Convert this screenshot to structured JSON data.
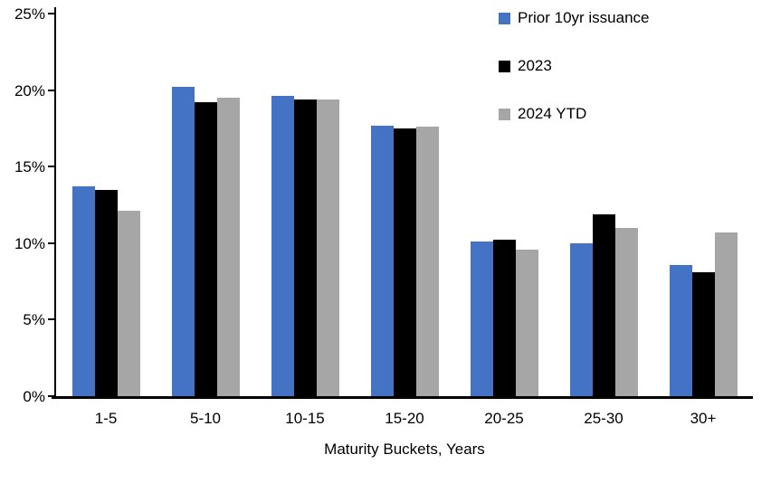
{
  "chart_data": {
    "type": "bar",
    "title": "",
    "xlabel": "Maturity Buckets, Years",
    "ylabel": "",
    "ylim": [
      0,
      25
    ],
    "ytick_step": 5,
    "ytick_labels": [
      "0%",
      "5%",
      "10%",
      "15%",
      "20%",
      "25%"
    ],
    "grid": false,
    "legend_position": "top-right",
    "categories": [
      "1-5",
      "5-10",
      "10-15",
      "15-20",
      "20-25",
      "25-30",
      "30+"
    ],
    "series": [
      {
        "name": "Prior 10yr issuance",
        "color": "#4472C4",
        "values": [
          13.7,
          20.2,
          19.6,
          17.7,
          10.1,
          10.0,
          8.6
        ]
      },
      {
        "name": "2023",
        "color": "#000000",
        "values": [
          13.5,
          19.2,
          19.4,
          17.5,
          10.2,
          11.9,
          8.1
        ]
      },
      {
        "name": "2024 YTD",
        "color": "#A6A6A6",
        "values": [
          12.1,
          19.5,
          19.4,
          17.6,
          9.6,
          11.0,
          10.7
        ]
      }
    ]
  }
}
